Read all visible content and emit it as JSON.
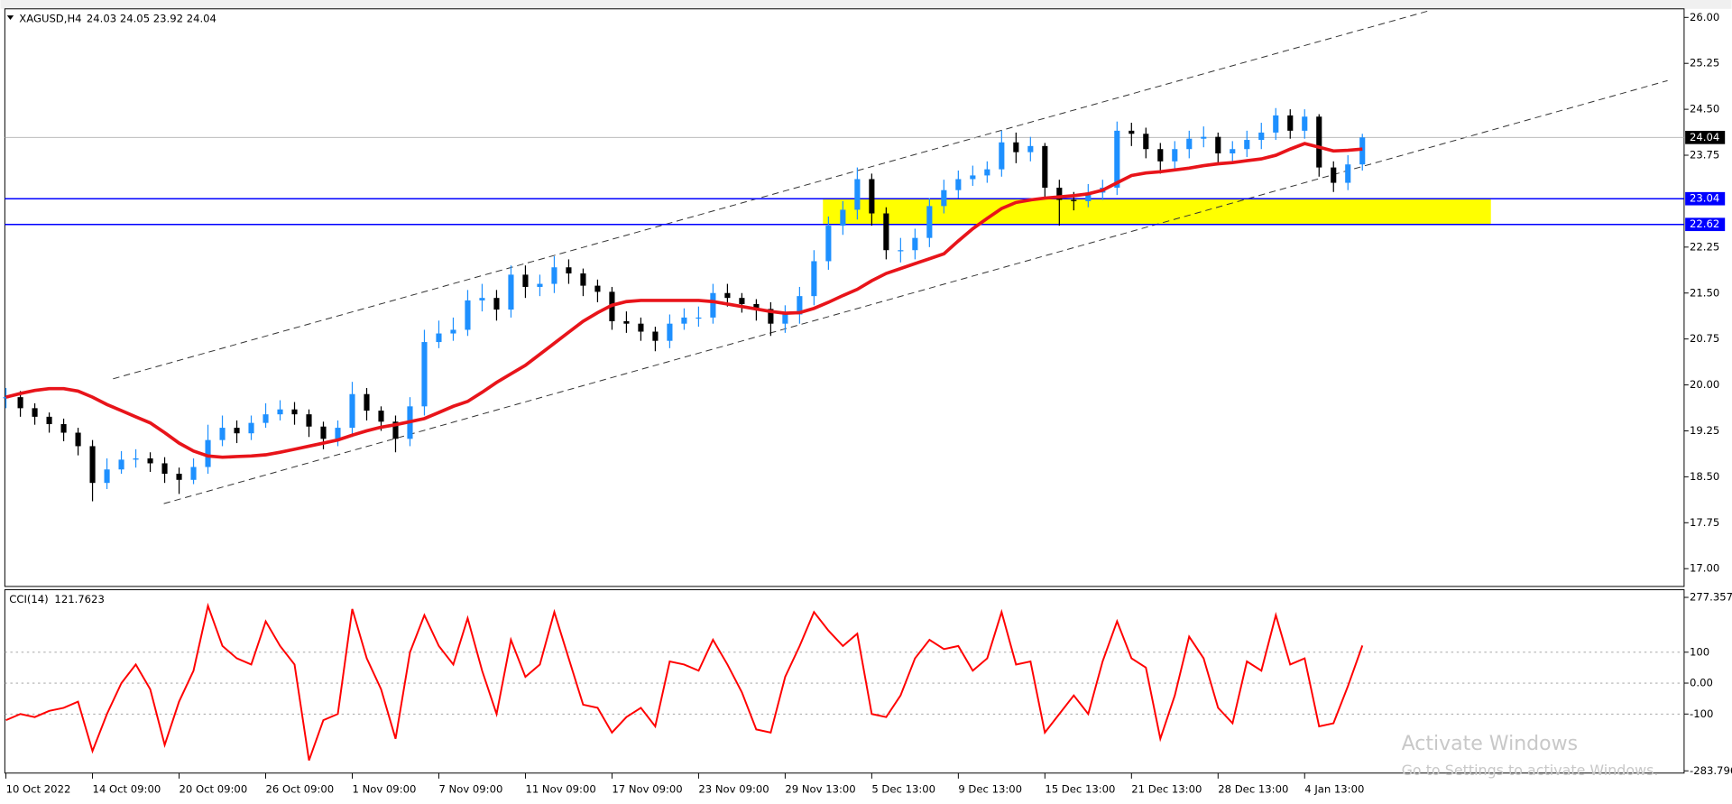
{
  "chart_data": [
    {
      "type": "candlestick",
      "title": "XAGUSD,H4",
      "ohlc": "24.03 24.05 23.92 24.04",
      "categories": [
        "10 Oct 2022",
        null,
        null,
        null,
        null,
        null,
        "14 Oct 09:00",
        null,
        null,
        null,
        null,
        null,
        "20 Oct 09:00",
        null,
        null,
        null,
        null,
        null,
        "26 Oct 09:00",
        null,
        null,
        null,
        null,
        null,
        "1 Nov 09:00",
        null,
        null,
        null,
        null,
        null,
        "7 Nov 09:00",
        null,
        null,
        null,
        null,
        null,
        "11 Nov 09:00",
        null,
        null,
        null,
        null,
        null,
        "17 Nov 09:00",
        null,
        null,
        null,
        null,
        null,
        "23 Nov 09:00",
        null,
        null,
        null,
        null,
        null,
        "29 Nov 13:00",
        null,
        null,
        null,
        null,
        null,
        "5 Dec 13:00",
        null,
        null,
        null,
        null,
        null,
        "9 Dec 13:00",
        null,
        null,
        null,
        null,
        null,
        "15 Dec 13:00",
        null,
        null,
        null,
        null,
        null,
        "21 Dec 13:00",
        null,
        null,
        null,
        null,
        null,
        "28 Dec 13:00",
        null,
        null,
        null,
        null,
        null,
        "4 Jan 13:00",
        null,
        null,
        null,
        null
      ],
      "close": [
        19.8,
        19.62,
        19.48,
        19.36,
        19.22,
        19.0,
        18.4,
        18.62,
        18.78,
        18.8,
        18.72,
        18.55,
        18.45,
        18.66,
        19.1,
        19.3,
        19.21,
        19.38,
        19.52,
        19.6,
        19.52,
        19.32,
        19.12,
        19.3,
        19.85,
        19.58,
        19.4,
        19.12,
        19.65,
        20.7,
        20.84,
        20.9,
        21.38,
        21.42,
        21.23,
        21.8,
        21.6,
        21.65,
        21.92,
        21.82,
        21.62,
        21.52,
        21.04,
        21.0,
        20.87,
        20.72,
        21.0,
        21.1,
        21.1,
        21.5,
        21.42,
        21.32,
        21.24,
        21.0,
        21.15,
        21.45,
        22.02,
        22.6,
        22.86,
        23.36,
        22.8,
        22.2,
        22.2,
        22.4,
        22.92,
        23.18,
        23.36,
        23.42,
        23.52,
        23.96,
        23.8,
        23.9,
        23.22,
        23.02,
        23.0,
        23.14,
        23.22,
        24.15,
        24.1,
        23.85,
        23.65,
        23.85,
        24.02,
        24.05,
        23.78,
        23.85,
        24.0,
        24.12,
        24.4,
        24.15,
        24.38,
        23.55,
        23.3,
        23.6,
        24.04
      ],
      "high": [
        19.95,
        19.9,
        19.7,
        19.55,
        19.45,
        19.3,
        19.1,
        18.8,
        18.92,
        18.95,
        18.9,
        18.82,
        18.65,
        18.8,
        19.35,
        19.5,
        19.42,
        19.5,
        19.7,
        19.75,
        19.72,
        19.6,
        19.4,
        19.42,
        20.05,
        19.95,
        19.65,
        19.5,
        19.8,
        20.9,
        21.05,
        21.1,
        21.55,
        21.65,
        21.55,
        21.95,
        21.95,
        21.8,
        22.1,
        22.05,
        21.9,
        21.72,
        21.6,
        21.2,
        21.1,
        20.95,
        21.15,
        21.25,
        21.28,
        21.65,
        21.65,
        21.5,
        21.4,
        21.35,
        21.3,
        21.6,
        22.2,
        22.75,
        23.0,
        23.55,
        23.45,
        22.9,
        22.4,
        22.55,
        23.05,
        23.35,
        23.5,
        23.58,
        23.65,
        24.15,
        24.12,
        24.05,
        23.95,
        23.35,
        23.15,
        23.28,
        23.35,
        24.3,
        24.28,
        24.2,
        23.95,
        23.98,
        24.15,
        24.22,
        24.12,
        23.98,
        24.15,
        24.28,
        24.52,
        24.5,
        24.5,
        24.42,
        23.65,
        23.75,
        24.1
      ],
      "low": [
        19.62,
        19.48,
        19.35,
        19.22,
        19.08,
        18.85,
        18.1,
        18.3,
        18.55,
        18.65,
        18.58,
        18.4,
        18.22,
        18.38,
        18.55,
        19.0,
        19.05,
        19.1,
        19.3,
        19.42,
        19.35,
        19.15,
        18.95,
        19.0,
        19.15,
        19.42,
        19.25,
        18.9,
        19.0,
        19.5,
        20.6,
        20.72,
        20.8,
        21.2,
        21.05,
        21.1,
        21.42,
        21.45,
        21.5,
        21.65,
        21.45,
        21.35,
        20.9,
        20.85,
        20.72,
        20.55,
        20.6,
        20.9,
        20.95,
        21.0,
        21.28,
        21.18,
        21.05,
        20.8,
        20.85,
        21.0,
        21.3,
        21.88,
        22.45,
        22.7,
        22.6,
        22.05,
        22.0,
        22.05,
        22.25,
        22.8,
        23.05,
        23.25,
        23.3,
        23.4,
        23.62,
        23.65,
        23.05,
        22.6,
        22.85,
        22.9,
        23.02,
        23.1,
        23.9,
        23.7,
        23.45,
        23.5,
        23.7,
        23.88,
        23.62,
        23.62,
        23.72,
        23.85,
        24.0,
        24.02,
        24.02,
        23.4,
        23.15,
        23.18,
        23.5
      ],
      "ma_values": [
        19.8,
        19.86,
        19.91,
        19.94,
        19.94,
        19.9,
        19.8,
        19.68,
        19.58,
        19.48,
        19.38,
        19.22,
        19.05,
        18.92,
        18.84,
        18.82,
        18.83,
        18.84,
        18.86,
        18.9,
        18.95,
        19.0,
        19.05,
        19.1,
        19.18,
        19.25,
        19.31,
        19.35,
        19.4,
        19.45,
        19.55,
        19.65,
        19.73,
        19.88,
        20.04,
        20.18,
        20.32,
        20.5,
        20.68,
        20.86,
        21.04,
        21.18,
        21.3,
        21.36,
        21.38,
        21.38,
        21.38,
        21.38,
        21.38,
        21.36,
        21.32,
        21.28,
        21.24,
        21.2,
        21.17,
        21.18,
        21.25,
        21.35,
        21.46,
        21.56,
        21.7,
        21.82,
        21.9,
        21.98,
        22.06,
        22.14,
        22.35,
        22.55,
        22.72,
        22.88,
        22.98,
        23.02,
        23.05,
        23.07,
        23.09,
        23.12,
        23.18,
        23.3,
        23.42,
        23.46,
        23.48,
        23.51,
        23.54,
        23.58,
        23.61,
        23.63,
        23.66,
        23.69,
        23.75,
        23.85,
        23.94,
        23.88,
        23.82,
        23.83,
        23.85
      ],
      "ma_color": "#e8141a",
      "up_color": "#1e90ff",
      "down_color": "#000000",
      "levels": [
        23.04,
        22.62
      ],
      "level_color": "#0000ff",
      "zone_color": "#ffff00",
      "ylim": [
        16.71,
        26.14
      ],
      "yticks": [
        {
          "value": 26,
          "label": "26.00"
        },
        {
          "value": 25.25,
          "label": "25.25"
        },
        {
          "value": 24.5,
          "label": "24.50"
        },
        {
          "value": 23.75,
          "label": "23.75"
        },
        {
          "value": 22.25,
          "label": "22.25"
        },
        {
          "value": 21.5,
          "label": "21.50"
        },
        {
          "value": 20.75,
          "label": "20.75"
        },
        {
          "value": 20,
          "label": "20.00"
        },
        {
          "value": 19.25,
          "label": "19.25"
        },
        {
          "value": 18.5,
          "label": "18.50"
        },
        {
          "value": 17.75,
          "label": "17.75"
        },
        {
          "value": 17,
          "label": "17.00"
        }
      ]
    },
    {
      "type": "line",
      "title": "CCI(14)",
      "color": "#ff0000",
      "grid": true,
      "values": [
        -120,
        -100,
        -110,
        -90,
        -80,
        -60,
        -220,
        -100,
        0,
        60,
        -20,
        -200,
        -60,
        40,
        250,
        120,
        80,
        60,
        200,
        120,
        60,
        -250,
        -120,
        -100,
        240,
        80,
        -20,
        -180,
        100,
        220,
        120,
        60,
        210,
        40,
        -100,
        140,
        20,
        60,
        230,
        80,
        -70,
        -80,
        -160,
        -110,
        -80,
        -140,
        70,
        60,
        40,
        140,
        60,
        -30,
        -150,
        -160,
        20,
        120,
        230,
        170,
        120,
        160,
        -100,
        -110,
        -40,
        80,
        140,
        110,
        120,
        40,
        80,
        230,
        60,
        70,
        -160,
        -100,
        -40,
        -100,
        70,
        200,
        80,
        50,
        -180,
        -40,
        150,
        80,
        -80,
        -130,
        70,
        40,
        220,
        60,
        80,
        -140,
        -130,
        -10,
        121.7623
      ],
      "ylim": [
        -291,
        302
      ],
      "yticks": [
        277.357,
        100,
        {
          "value": 0,
          "label": "0.00"
        },
        -100,
        {
          "value": -283.796,
          "label": "-283.796"
        }
      ]
    }
  ],
  "watermark": {
    "line1": "Activate Windows",
    "line2": "Go to Settings to activate Windows."
  }
}
